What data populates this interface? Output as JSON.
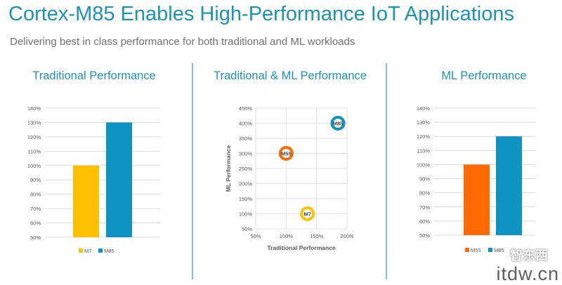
{
  "header": {
    "title": "Cortex-M85 Enables High-Performance IoT Applications",
    "subtitle": "Delivering best in class performance for both traditional and ML workloads"
  },
  "panels": [
    {
      "title": "Traditional Performance"
    },
    {
      "title": "Traditional & ML Performance"
    },
    {
      "title": "ML Performance"
    }
  ],
  "watermark": {
    "text": "itdw.cn",
    "chinese": "智东西"
  },
  "colors": {
    "accent": "#1b93b5",
    "m7": "#ffc000",
    "m85": "#0f93c2",
    "m55": "#ff6b00"
  },
  "chart_data": [
    {
      "type": "bar",
      "categories": [
        "M7",
        "M85"
      ],
      "values": [
        100,
        130
      ],
      "colors": [
        "#ffc000",
        "#0f93c2"
      ],
      "ylim": [
        50,
        140
      ],
      "yticks": [
        50,
        60,
        70,
        80,
        90,
        100,
        110,
        120,
        130,
        140
      ],
      "ytick_labels": [
        "50%",
        "60%",
        "70%",
        "80%",
        "90%",
        "100%",
        "110%",
        "120%",
        "130%",
        "140%"
      ],
      "legend": [
        "M7",
        "M85"
      ],
      "legend_position": "bottom",
      "grid": true
    },
    {
      "type": "scatter",
      "points": [
        {
          "label": "M55",
          "x": 100,
          "y": 300,
          "color": "#ff6b00"
        },
        {
          "label": "M85",
          "x": 185,
          "y": 400,
          "color": "#0f93c2"
        },
        {
          "label": "M7",
          "x": 135,
          "y": 100,
          "color": "#ffc000"
        }
      ],
      "xlim": [
        50,
        200
      ],
      "ylim": [
        50,
        450
      ],
      "xticks": [
        50,
        100,
        150,
        200
      ],
      "xtick_labels": [
        "50%",
        "100%",
        "150%",
        "200%"
      ],
      "yticks": [
        50,
        100,
        150,
        200,
        250,
        300,
        350,
        400,
        450
      ],
      "ytick_labels": [
        "50%",
        "100%",
        "150%",
        "200%",
        "250%",
        "300%",
        "350%",
        "400%",
        "450%"
      ],
      "xlabel": "Traditional Performance",
      "ylabel": "ML Performance",
      "grid": true
    },
    {
      "type": "bar",
      "categories": [
        "M55",
        "M85"
      ],
      "values": [
        100,
        120
      ],
      "colors": [
        "#ff6b00",
        "#0f93c2"
      ],
      "ylim": [
        50,
        140
      ],
      "yticks": [
        50,
        60,
        70,
        80,
        90,
        100,
        110,
        120,
        130,
        140
      ],
      "ytick_labels": [
        "50%",
        "60%",
        "70%",
        "80%",
        "90%",
        "100%",
        "110%",
        "120%",
        "130%",
        "140%"
      ],
      "legend": [
        "M55",
        "M85"
      ],
      "legend_position": "bottom",
      "grid": true
    }
  ]
}
